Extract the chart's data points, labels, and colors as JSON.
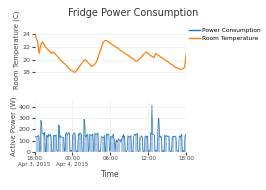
{
  "title": "Fridge Power Consumption",
  "title_fontsize": 7,
  "background_color": "#ffffff",
  "subplot1": {
    "ylabel": "Room Temperature (C)",
    "ylabel_fontsize": 5.0,
    "ylim": [
      17.5,
      25.5
    ],
    "yticks": [
      18,
      20,
      22,
      24
    ],
    "line_color": "#ff7f0e",
    "line_width": 0.9,
    "temp_data": [
      24.2,
      23.5,
      22.8,
      21.0,
      22.3,
      22.8,
      22.5,
      22.0,
      21.8,
      21.5,
      21.3,
      21.0,
      21.2,
      21.0,
      20.8,
      20.5,
      20.2,
      19.9,
      19.7,
      19.5,
      19.3,
      19.0,
      18.8,
      18.5,
      18.3,
      18.2,
      18.0,
      18.2,
      18.5,
      18.8,
      19.2,
      19.5,
      19.8,
      20.0,
      19.8,
      19.5,
      19.3,
      19.0,
      19.0,
      19.2,
      19.5,
      20.0,
      20.8,
      21.5,
      22.2,
      22.8,
      23.0,
      23.0,
      22.8,
      22.7,
      22.5,
      22.3,
      22.2,
      22.0,
      21.9,
      21.7,
      21.5,
      21.3,
      21.2,
      21.0,
      20.8,
      20.7,
      20.5,
      20.3,
      20.2,
      20.0,
      19.8,
      19.8,
      20.0,
      20.2,
      20.5,
      20.8,
      21.0,
      21.2,
      21.0,
      20.8,
      20.6,
      20.5,
      20.3,
      21.0,
      20.8,
      20.7,
      20.5,
      20.3,
      20.2,
      20.0,
      19.8,
      19.7,
      19.5,
      19.3,
      19.2,
      19.0,
      18.8,
      18.7,
      18.6,
      18.5,
      18.5,
      18.6,
      18.8,
      21.0
    ]
  },
  "subplot2": {
    "ylabel": "Active Power (W)",
    "ylabel_fontsize": 5.0,
    "ylim": [
      0,
      450
    ],
    "yticks": [
      0,
      100,
      200,
      300,
      400
    ],
    "bar_color": "#aec7e8",
    "line_color": "#1f77b4",
    "line_width": 0.5
  },
  "xlabel": "Time",
  "xlabel_fontsize": 5.5,
  "xtick_labels": [
    "18:00\nApr 3, 2015",
    "00:00\nApr 4, 2015",
    "06:00",
    "12:00",
    "18:00"
  ],
  "xtick_fontsize": 4.0,
  "ytick_fontsize": 4.5,
  "legend_labels": [
    "Power Consumption",
    "Room Temperature"
  ],
  "legend_colors": [
    "#1f77b4",
    "#ff7f0e"
  ],
  "legend_fontsize": 4.2,
  "grid_color": "#e8e8e8",
  "n_power_points": 240
}
